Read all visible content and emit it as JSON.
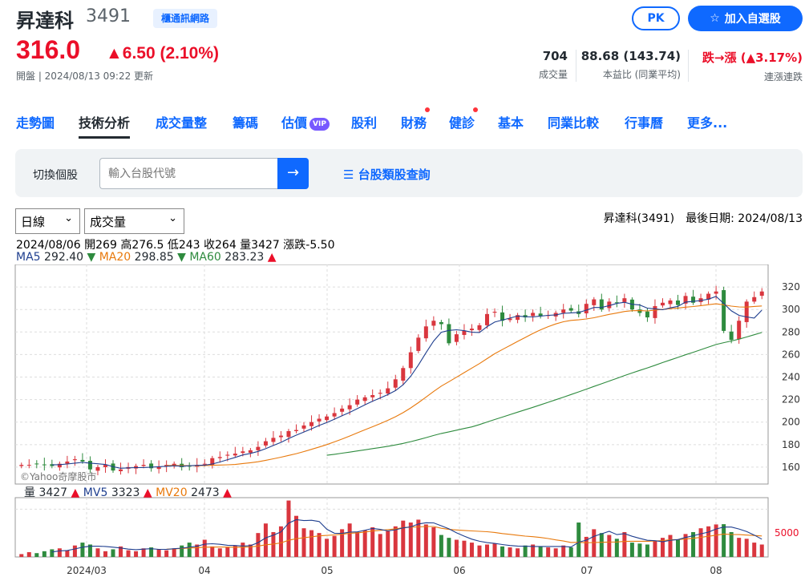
{
  "header": {
    "name": "昇達科",
    "code": "3491",
    "industry": "櫃通訊網路",
    "pk_label": "PK",
    "add_label": "加入自選股",
    "price": "316.0",
    "change": "▲6.50 (2.10%)",
    "time": "開盤 | 2024/08/13 09:22 更新"
  },
  "stats": [
    {
      "value": "704",
      "label": "成交量"
    },
    {
      "value": "88.68 (143.74)",
      "label": "本益比 (同業平均)"
    },
    {
      "value": "跌→漲 (▲3.17%)",
      "label": "連漲連跌"
    }
  ],
  "tabs": [
    "走勢圖",
    "技術分析",
    "成交量整",
    "籌碼",
    "估價",
    "股利",
    "財務",
    "健診",
    "基本",
    "同業比較",
    "行事曆",
    "更多..."
  ],
  "vip_label": "VIP",
  "search": {
    "label": "切換個股",
    "placeholder": "輸入台股代號",
    "category_link": "台股類股查詢"
  },
  "controls": {
    "period": "日線",
    "indicator": "成交量",
    "info_right": "昇達科(3491)　最後日期: 2024/08/13"
  },
  "ohlc_text": "2024/08/06 開269 高276.5 低243 收264 量3427 漲跌-5.50",
  "ma": [
    {
      "label": "MA5",
      "value": "292.40",
      "arrow": "▼",
      "color": "#1f3f8f"
    },
    {
      "label": "MA20",
      "value": "298.85",
      "arrow": "▼",
      "color": "#e8790c"
    },
    {
      "label": "MA60",
      "value": "283.23",
      "arrow": "▲",
      "color": "#2e8b3e"
    }
  ],
  "vol_legend": [
    {
      "label": "量",
      "value": "3427",
      "arrow": "▲",
      "color": "#000"
    },
    {
      "label": "MV5",
      "value": "3323",
      "arrow": "▲",
      "color": "#1f3f8f"
    },
    {
      "label": "MV20",
      "value": "2473",
      "arrow": "▲",
      "color": "#e8790c"
    }
  ],
  "watermark": "©Yahoo奇摩股市",
  "chart_data": {
    "type": "candlestick",
    "y_ticks": [
      160,
      180,
      200,
      220,
      240,
      260,
      280,
      300,
      320
    ],
    "ylim": [
      145,
      340
    ],
    "x_labels": [
      "2024/03",
      "04",
      "05",
      "06",
      "07",
      "08"
    ],
    "vol_tick": "5000",
    "close_path": [
      162,
      162,
      163,
      162,
      161,
      163,
      165,
      167,
      165,
      158,
      160,
      162,
      157,
      158,
      160,
      161,
      162,
      159,
      160,
      162,
      163,
      160,
      161,
      162,
      163,
      168,
      169,
      171,
      172,
      174,
      175,
      178,
      183,
      186,
      188,
      192,
      193,
      197,
      200,
      203,
      205,
      208,
      212,
      215,
      220,
      222,
      224,
      226,
      230,
      238,
      248,
      262,
      275,
      285,
      290,
      287,
      270,
      278,
      281,
      283,
      286,
      296,
      298,
      290,
      292,
      295,
      293,
      297,
      294,
      295,
      297,
      300,
      299,
      296,
      305,
      309,
      300,
      307,
      306,
      310,
      300,
      297,
      293,
      303,
      306,
      308,
      304,
      312,
      306,
      310,
      314,
      316,
      281,
      273,
      290,
      307,
      311,
      316
    ],
    "volume_path": [
      300,
      500,
      400,
      600,
      800,
      900,
      700,
      1200,
      1500,
      1300,
      900,
      600,
      800,
      1100,
      700,
      600,
      900,
      1000,
      800,
      700,
      900,
      1200,
      1500,
      1300,
      1800,
      1100,
      900,
      1000,
      1200,
      1500,
      1300,
      2500,
      3500,
      2600,
      3200,
      5900,
      4300,
      3000,
      2800,
      2500,
      1900,
      2200,
      2900,
      3500,
      2600,
      2800,
      3100,
      2400,
      2700,
      3200,
      3800,
      3600,
      3900,
      3400,
      3100,
      2300,
      2000,
      1800,
      1700,
      1500,
      1200,
      1300,
      1400,
      1100,
      1000,
      900,
      1200,
      1300,
      1100,
      1000,
      900,
      1200,
      1000,
      3600,
      2100,
      2900,
      2500,
      2300,
      1900,
      2600,
      1500,
      1400,
      1300,
      1700,
      2000,
      2300,
      1800,
      2400,
      2600,
      3000,
      3200,
      3400,
      3427,
      2600,
      2000,
      1900,
      1500,
      1300
    ]
  }
}
